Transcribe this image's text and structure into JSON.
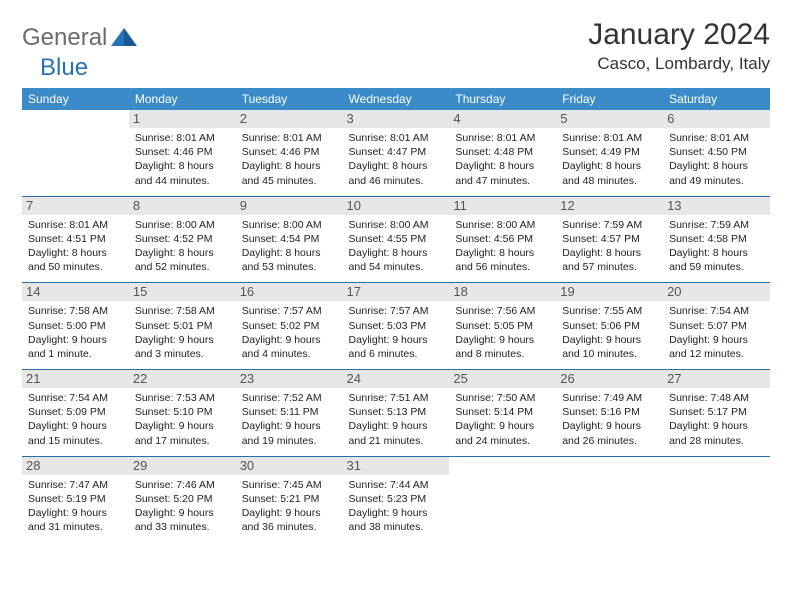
{
  "logo": {
    "part1": "General",
    "part2": "Blue"
  },
  "title": "January 2024",
  "location": "Casco, Lombardy, Italy",
  "colors": {
    "header_bg": "#3b8bc8",
    "header_fg": "#ffffff",
    "row_divider": "#2d6ca3",
    "daynum_bg": "#e7e7e7",
    "logo_blue": "#2772b7",
    "logo_gray": "#6b6b6b"
  },
  "weekdays": [
    "Sunday",
    "Monday",
    "Tuesday",
    "Wednesday",
    "Thursday",
    "Friday",
    "Saturday"
  ],
  "weeks": [
    [
      {
        "n": "",
        "sr": "",
        "ss": "",
        "dl": ""
      },
      {
        "n": "1",
        "sr": "Sunrise: 8:01 AM",
        "ss": "Sunset: 4:46 PM",
        "dl": "Daylight: 8 hours and 44 minutes."
      },
      {
        "n": "2",
        "sr": "Sunrise: 8:01 AM",
        "ss": "Sunset: 4:46 PM",
        "dl": "Daylight: 8 hours and 45 minutes."
      },
      {
        "n": "3",
        "sr": "Sunrise: 8:01 AM",
        "ss": "Sunset: 4:47 PM",
        "dl": "Daylight: 8 hours and 46 minutes."
      },
      {
        "n": "4",
        "sr": "Sunrise: 8:01 AM",
        "ss": "Sunset: 4:48 PM",
        "dl": "Daylight: 8 hours and 47 minutes."
      },
      {
        "n": "5",
        "sr": "Sunrise: 8:01 AM",
        "ss": "Sunset: 4:49 PM",
        "dl": "Daylight: 8 hours and 48 minutes."
      },
      {
        "n": "6",
        "sr": "Sunrise: 8:01 AM",
        "ss": "Sunset: 4:50 PM",
        "dl": "Daylight: 8 hours and 49 minutes."
      }
    ],
    [
      {
        "n": "7",
        "sr": "Sunrise: 8:01 AM",
        "ss": "Sunset: 4:51 PM",
        "dl": "Daylight: 8 hours and 50 minutes."
      },
      {
        "n": "8",
        "sr": "Sunrise: 8:00 AM",
        "ss": "Sunset: 4:52 PM",
        "dl": "Daylight: 8 hours and 52 minutes."
      },
      {
        "n": "9",
        "sr": "Sunrise: 8:00 AM",
        "ss": "Sunset: 4:54 PM",
        "dl": "Daylight: 8 hours and 53 minutes."
      },
      {
        "n": "10",
        "sr": "Sunrise: 8:00 AM",
        "ss": "Sunset: 4:55 PM",
        "dl": "Daylight: 8 hours and 54 minutes."
      },
      {
        "n": "11",
        "sr": "Sunrise: 8:00 AM",
        "ss": "Sunset: 4:56 PM",
        "dl": "Daylight: 8 hours and 56 minutes."
      },
      {
        "n": "12",
        "sr": "Sunrise: 7:59 AM",
        "ss": "Sunset: 4:57 PM",
        "dl": "Daylight: 8 hours and 57 minutes."
      },
      {
        "n": "13",
        "sr": "Sunrise: 7:59 AM",
        "ss": "Sunset: 4:58 PM",
        "dl": "Daylight: 8 hours and 59 minutes."
      }
    ],
    [
      {
        "n": "14",
        "sr": "Sunrise: 7:58 AM",
        "ss": "Sunset: 5:00 PM",
        "dl": "Daylight: 9 hours and 1 minute."
      },
      {
        "n": "15",
        "sr": "Sunrise: 7:58 AM",
        "ss": "Sunset: 5:01 PM",
        "dl": "Daylight: 9 hours and 3 minutes."
      },
      {
        "n": "16",
        "sr": "Sunrise: 7:57 AM",
        "ss": "Sunset: 5:02 PM",
        "dl": "Daylight: 9 hours and 4 minutes."
      },
      {
        "n": "17",
        "sr": "Sunrise: 7:57 AM",
        "ss": "Sunset: 5:03 PM",
        "dl": "Daylight: 9 hours and 6 minutes."
      },
      {
        "n": "18",
        "sr": "Sunrise: 7:56 AM",
        "ss": "Sunset: 5:05 PM",
        "dl": "Daylight: 9 hours and 8 minutes."
      },
      {
        "n": "19",
        "sr": "Sunrise: 7:55 AM",
        "ss": "Sunset: 5:06 PM",
        "dl": "Daylight: 9 hours and 10 minutes."
      },
      {
        "n": "20",
        "sr": "Sunrise: 7:54 AM",
        "ss": "Sunset: 5:07 PM",
        "dl": "Daylight: 9 hours and 12 minutes."
      }
    ],
    [
      {
        "n": "21",
        "sr": "Sunrise: 7:54 AM",
        "ss": "Sunset: 5:09 PM",
        "dl": "Daylight: 9 hours and 15 minutes."
      },
      {
        "n": "22",
        "sr": "Sunrise: 7:53 AM",
        "ss": "Sunset: 5:10 PM",
        "dl": "Daylight: 9 hours and 17 minutes."
      },
      {
        "n": "23",
        "sr": "Sunrise: 7:52 AM",
        "ss": "Sunset: 5:11 PM",
        "dl": "Daylight: 9 hours and 19 minutes."
      },
      {
        "n": "24",
        "sr": "Sunrise: 7:51 AM",
        "ss": "Sunset: 5:13 PM",
        "dl": "Daylight: 9 hours and 21 minutes."
      },
      {
        "n": "25",
        "sr": "Sunrise: 7:50 AM",
        "ss": "Sunset: 5:14 PM",
        "dl": "Daylight: 9 hours and 24 minutes."
      },
      {
        "n": "26",
        "sr": "Sunrise: 7:49 AM",
        "ss": "Sunset: 5:16 PM",
        "dl": "Daylight: 9 hours and 26 minutes."
      },
      {
        "n": "27",
        "sr": "Sunrise: 7:48 AM",
        "ss": "Sunset: 5:17 PM",
        "dl": "Daylight: 9 hours and 28 minutes."
      }
    ],
    [
      {
        "n": "28",
        "sr": "Sunrise: 7:47 AM",
        "ss": "Sunset: 5:19 PM",
        "dl": "Daylight: 9 hours and 31 minutes."
      },
      {
        "n": "29",
        "sr": "Sunrise: 7:46 AM",
        "ss": "Sunset: 5:20 PM",
        "dl": "Daylight: 9 hours and 33 minutes."
      },
      {
        "n": "30",
        "sr": "Sunrise: 7:45 AM",
        "ss": "Sunset: 5:21 PM",
        "dl": "Daylight: 9 hours and 36 minutes."
      },
      {
        "n": "31",
        "sr": "Sunrise: 7:44 AM",
        "ss": "Sunset: 5:23 PM",
        "dl": "Daylight: 9 hours and 38 minutes."
      },
      {
        "n": "",
        "sr": "",
        "ss": "",
        "dl": ""
      },
      {
        "n": "",
        "sr": "",
        "ss": "",
        "dl": ""
      },
      {
        "n": "",
        "sr": "",
        "ss": "",
        "dl": ""
      }
    ]
  ]
}
